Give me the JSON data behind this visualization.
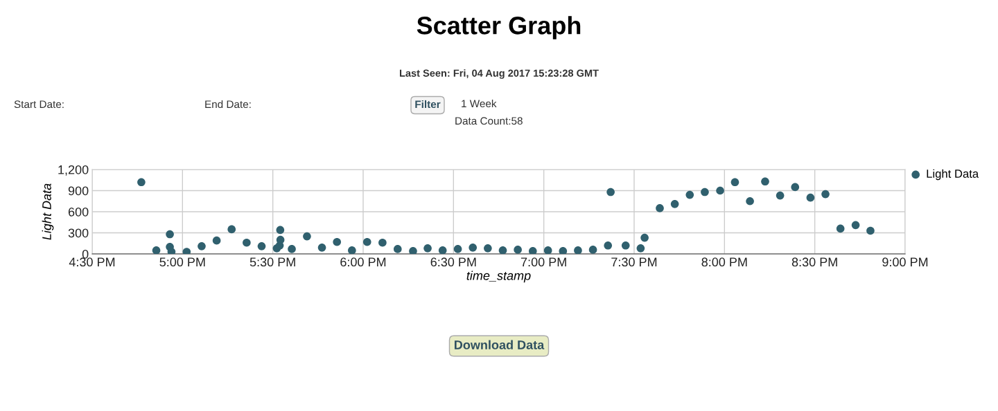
{
  "chart_data": {
    "type": "scatter",
    "title": "Scatter Graph",
    "subtitle": "Last Seen: Fri, 04 Aug 2017 15:23:28 GMT",
    "xlabel": "time_stamp",
    "ylabel": "Light Data",
    "annotations": [
      "Start Date:",
      "End Date:",
      "Filter",
      "1 Week",
      "Data Count:58",
      "Download Data"
    ],
    "series": [
      {
        "name": "Light Data",
        "color": "#30606e",
        "x": [
          16.772,
          16.855,
          16.93,
          16.93,
          16.939,
          17.023,
          17.106,
          17.189,
          17.272,
          17.355,
          17.438,
          17.522,
          17.538,
          17.542,
          17.541,
          17.605,
          17.689,
          17.772,
          17.855,
          17.938,
          18.022,
          18.107,
          18.191,
          18.276,
          18.357,
          18.44,
          18.524,
          18.607,
          18.69,
          18.773,
          18.856,
          18.939,
          19.023,
          19.106,
          19.189,
          19.272,
          19.355,
          19.37,
          19.453,
          19.536,
          19.558,
          19.642,
          19.725,
          19.808,
          19.891,
          19.976,
          20.058,
          20.141,
          20.225,
          20.308,
          20.391,
          20.476,
          20.559,
          20.642,
          20.726,
          20.808
        ],
        "values": [
          1020,
          50,
          280,
          100,
          30,
          30,
          110,
          190,
          350,
          160,
          110,
          80,
          120,
          200,
          340,
          70,
          250,
          90,
          170,
          50,
          170,
          160,
          70,
          40,
          80,
          50,
          70,
          90,
          80,
          50,
          60,
          40,
          50,
          40,
          50,
          60,
          120,
          880,
          120,
          80,
          230,
          650,
          710,
          840,
          880,
          900,
          1020,
          750,
          1030,
          830,
          950,
          800,
          850,
          360,
          410,
          330
        ]
      }
    ],
    "xlim": [
      16.5,
      21
    ],
    "xticks": [
      {
        "value": 16.5,
        "label": "4:30 PM"
      },
      {
        "value": 17,
        "label": "5:00 PM"
      },
      {
        "value": 17.5,
        "label": "5:30 PM"
      },
      {
        "value": 18,
        "label": "6:00 PM"
      },
      {
        "value": 18.5,
        "label": "6:30 PM"
      },
      {
        "value": 19,
        "label": "7:00 PM"
      },
      {
        "value": 19.5,
        "label": "7:30 PM"
      },
      {
        "value": 20,
        "label": "8:00 PM"
      },
      {
        "value": 20.5,
        "label": "8:30 PM"
      },
      {
        "value": 21,
        "label": "9:00 PM"
      }
    ],
    "ylim": [
      0,
      1200
    ],
    "yticks": [
      0,
      300,
      600,
      900,
      {
        "value": 1200,
        "label": "1,200"
      }
    ],
    "grid": true,
    "legend": "top right",
    "marker": "circle"
  }
}
